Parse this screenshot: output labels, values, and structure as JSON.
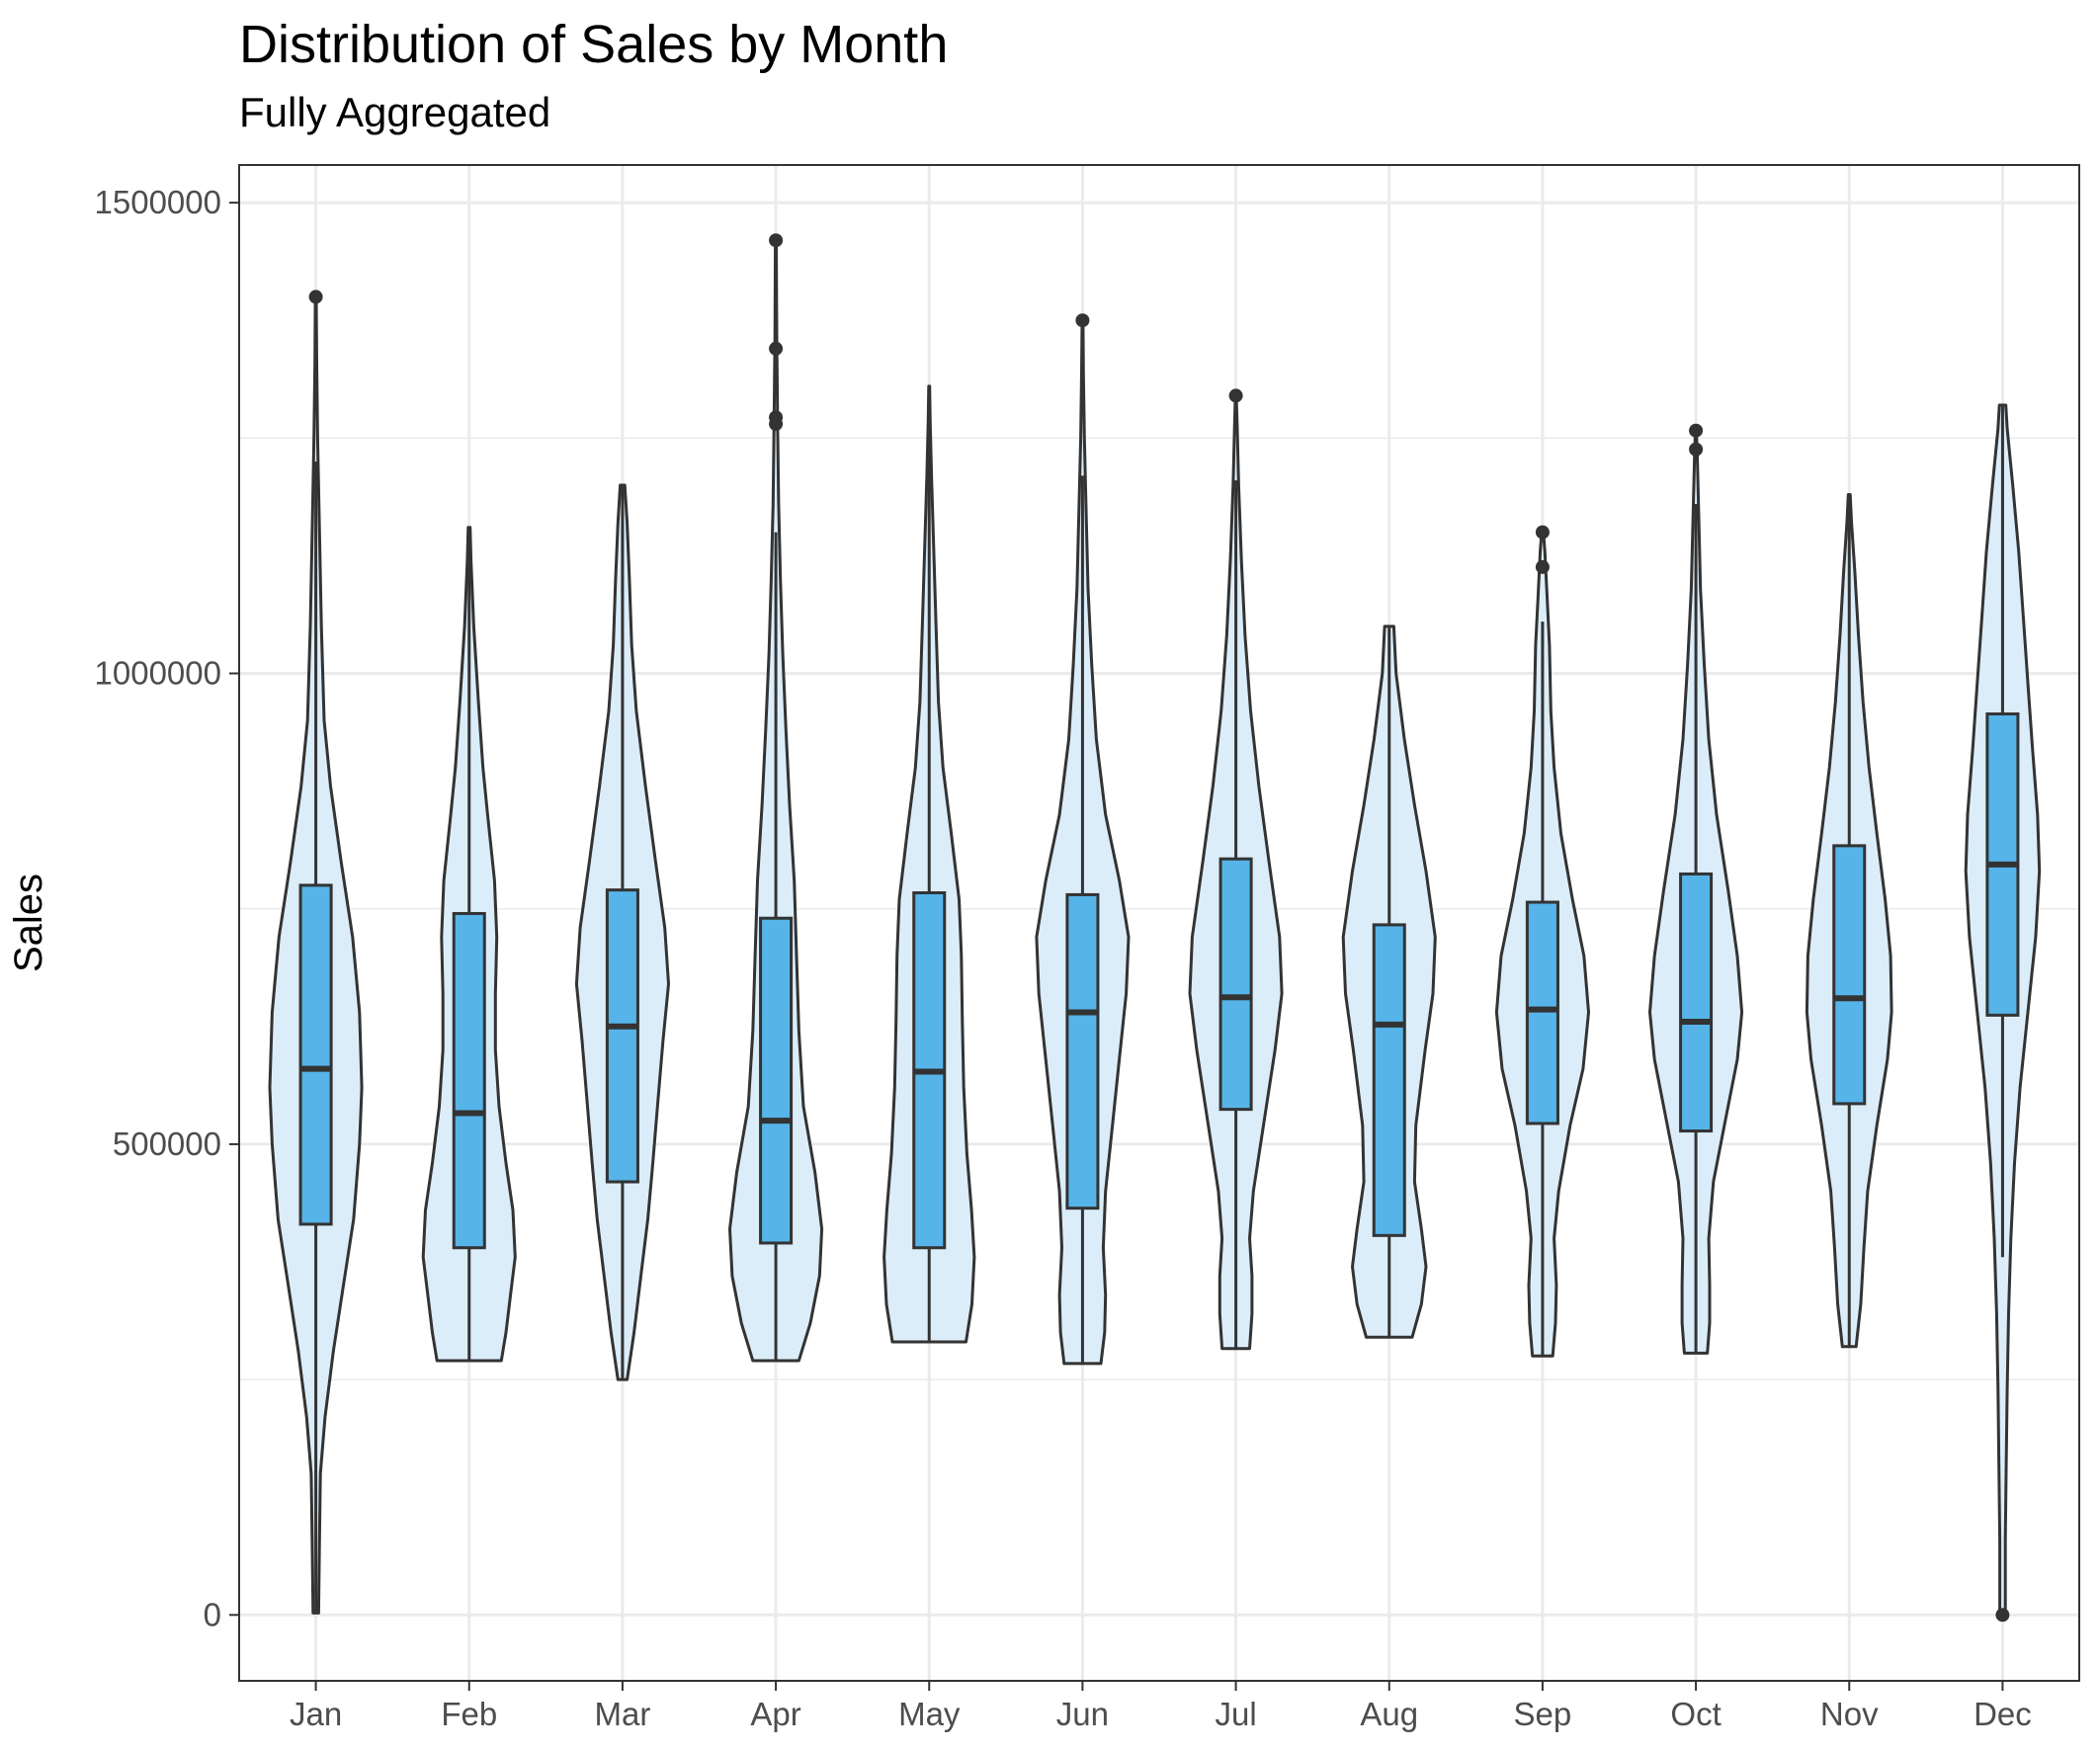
{
  "chart_data": {
    "type": "violin",
    "title": "Distribution of Sales by Month",
    "subtitle": "Fully Aggregated",
    "xlabel": "",
    "ylabel": "Sales",
    "ylim": [
      -70000,
      1540000
    ],
    "yticks": [
      0,
      500000,
      1000000,
      1500000
    ],
    "grid": true,
    "colors": {
      "violin_fill": "#dcedfa",
      "box_fill": "#56b4e9",
      "outline": "#333333",
      "grid": "#ebebeb",
      "panel_border": "#333333"
    },
    "categories": [
      "Jan",
      "Feb",
      "Mar",
      "Apr",
      "May",
      "Jun",
      "Jul",
      "Aug",
      "Sep",
      "Oct",
      "Nov",
      "Dec"
    ],
    "violins": [
      {
        "month": "Jan",
        "min": 2000,
        "max": 1400000,
        "width": [
          [
            2000,
            0.06
          ],
          [
            80000,
            0.08
          ],
          [
            150000,
            0.1
          ],
          [
            210000,
            0.2
          ],
          [
            280000,
            0.38
          ],
          [
            350000,
            0.6
          ],
          [
            420000,
            0.82
          ],
          [
            500000,
            0.95
          ],
          [
            560000,
            1.0
          ],
          [
            640000,
            0.95
          ],
          [
            720000,
            0.8
          ],
          [
            800000,
            0.55
          ],
          [
            880000,
            0.32
          ],
          [
            950000,
            0.18
          ],
          [
            1050000,
            0.12
          ],
          [
            1150000,
            0.08
          ],
          [
            1250000,
            0.04
          ],
          [
            1330000,
            0.02
          ],
          [
            1400000,
            0.01
          ]
        ],
        "q1": 415000,
        "median": 580000,
        "q3": 775000,
        "whisker_low": 2000,
        "whisker_high": 1225000,
        "outliers": [
          1400000
        ]
      },
      {
        "month": "Feb",
        "min": 270000,
        "max": 1155000,
        "width": [
          [
            270000,
            0.7
          ],
          [
            300000,
            0.8
          ],
          [
            340000,
            0.9
          ],
          [
            380000,
            1.0
          ],
          [
            430000,
            0.95
          ],
          [
            480000,
            0.8
          ],
          [
            540000,
            0.65
          ],
          [
            600000,
            0.57
          ],
          [
            660000,
            0.57
          ],
          [
            720000,
            0.6
          ],
          [
            780000,
            0.55
          ],
          [
            850000,
            0.4
          ],
          [
            900000,
            0.3
          ],
          [
            970000,
            0.2
          ],
          [
            1050000,
            0.1
          ],
          [
            1120000,
            0.04
          ],
          [
            1155000,
            0.02
          ]
        ],
        "q1": 390000,
        "median": 533000,
        "q3": 745000,
        "whisker_low": 270000,
        "whisker_high": 1155000,
        "outliers": []
      },
      {
        "month": "Mar",
        "min": 250000,
        "max": 1200000,
        "width": [
          [
            250000,
            0.1
          ],
          [
            300000,
            0.25
          ],
          [
            360000,
            0.4
          ],
          [
            420000,
            0.55
          ],
          [
            480000,
            0.66
          ],
          [
            540000,
            0.76
          ],
          [
            610000,
            0.88
          ],
          [
            670000,
            1.0
          ],
          [
            730000,
            0.92
          ],
          [
            800000,
            0.72
          ],
          [
            880000,
            0.5
          ],
          [
            960000,
            0.3
          ],
          [
            1030000,
            0.2
          ],
          [
            1100000,
            0.15
          ],
          [
            1160000,
            0.1
          ],
          [
            1200000,
            0.05
          ]
        ],
        "q1": 460000,
        "median": 625000,
        "q3": 770000,
        "whisker_low": 250000,
        "whisker_high": 1200000,
        "outliers": []
      },
      {
        "month": "Apr",
        "min": 270000,
        "max": 1460000,
        "width": [
          [
            270000,
            0.5
          ],
          [
            310000,
            0.75
          ],
          [
            360000,
            0.95
          ],
          [
            410000,
            1.0
          ],
          [
            470000,
            0.85
          ],
          [
            540000,
            0.6
          ],
          [
            620000,
            0.5
          ],
          [
            700000,
            0.45
          ],
          [
            780000,
            0.4
          ],
          [
            860000,
            0.3
          ],
          [
            940000,
            0.22
          ],
          [
            1020000,
            0.15
          ],
          [
            1100000,
            0.1
          ],
          [
            1180000,
            0.06
          ],
          [
            1260000,
            0.04
          ],
          [
            1360000,
            0.02
          ],
          [
            1460000,
            0.01
          ]
        ],
        "q1": 395000,
        "median": 525000,
        "q3": 740000,
        "whisker_low": 270000,
        "whisker_high": 1150000,
        "outliers": [
          1460000,
          1345000,
          1272000,
          1265000
        ]
      },
      {
        "month": "May",
        "min": 290000,
        "max": 1305000,
        "width": [
          [
            290000,
            0.8
          ],
          [
            330000,
            0.93
          ],
          [
            380000,
            0.98
          ],
          [
            430000,
            0.92
          ],
          [
            490000,
            0.82
          ],
          [
            560000,
            0.75
          ],
          [
            630000,
            0.72
          ],
          [
            700000,
            0.7
          ],
          [
            760000,
            0.65
          ],
          [
            830000,
            0.48
          ],
          [
            900000,
            0.3
          ],
          [
            970000,
            0.2
          ],
          [
            1050000,
            0.15
          ],
          [
            1130000,
            0.1
          ],
          [
            1210000,
            0.05
          ],
          [
            1270000,
            0.02
          ],
          [
            1305000,
            0.01
          ]
        ],
        "q1": 390000,
        "median": 577000,
        "q3": 767000,
        "whisker_low": 290000,
        "whisker_high": 1305000,
        "outliers": []
      },
      {
        "month": "Jun",
        "min": 267000,
        "max": 1375000,
        "width": [
          [
            267000,
            0.4
          ],
          [
            300000,
            0.48
          ],
          [
            340000,
            0.5
          ],
          [
            390000,
            0.45
          ],
          [
            450000,
            0.5
          ],
          [
            520000,
            0.65
          ],
          [
            600000,
            0.82
          ],
          [
            660000,
            0.95
          ],
          [
            720000,
            1.0
          ],
          [
            780000,
            0.8
          ],
          [
            850000,
            0.5
          ],
          [
            930000,
            0.3
          ],
          [
            1010000,
            0.2
          ],
          [
            1090000,
            0.12
          ],
          [
            1170000,
            0.08
          ],
          [
            1250000,
            0.04
          ],
          [
            1320000,
            0.02
          ],
          [
            1375000,
            0.01
          ]
        ],
        "q1": 432000,
        "median": 640000,
        "q3": 765000,
        "whisker_low": 267000,
        "whisker_high": 1210000,
        "outliers": [
          1375000
        ]
      },
      {
        "month": "Jul",
        "min": 283000,
        "max": 1295000,
        "width": [
          [
            283000,
            0.3
          ],
          [
            320000,
            0.35
          ],
          [
            360000,
            0.35
          ],
          [
            400000,
            0.3
          ],
          [
            450000,
            0.38
          ],
          [
            520000,
            0.6
          ],
          [
            600000,
            0.85
          ],
          [
            660000,
            1.0
          ],
          [
            720000,
            0.95
          ],
          [
            800000,
            0.72
          ],
          [
            880000,
            0.5
          ],
          [
            960000,
            0.32
          ],
          [
            1040000,
            0.2
          ],
          [
            1120000,
            0.12
          ],
          [
            1200000,
            0.06
          ],
          [
            1260000,
            0.03
          ],
          [
            1295000,
            0.01
          ]
        ],
        "q1": 537000,
        "median": 656000,
        "q3": 803000,
        "whisker_low": 283000,
        "whisker_high": 1205000,
        "outliers": [
          1295000
        ]
      },
      {
        "month": "Aug",
        "min": 295000,
        "max": 1050000,
        "width": [
          [
            295000,
            0.5
          ],
          [
            330000,
            0.7
          ],
          [
            370000,
            0.8
          ],
          [
            410000,
            0.7
          ],
          [
            460000,
            0.55
          ],
          [
            520000,
            0.58
          ],
          [
            600000,
            0.78
          ],
          [
            660000,
            0.95
          ],
          [
            720000,
            1.0
          ],
          [
            790000,
            0.8
          ],
          [
            860000,
            0.55
          ],
          [
            930000,
            0.33
          ],
          [
            1000000,
            0.15
          ],
          [
            1050000,
            0.1
          ]
        ],
        "q1": 403000,
        "median": 627000,
        "q3": 733000,
        "whisker_low": 295000,
        "whisker_high": 1050000,
        "outliers": []
      },
      {
        "month": "Sep",
        "min": 275000,
        "max": 1150000,
        "width": [
          [
            275000,
            0.22
          ],
          [
            310000,
            0.28
          ],
          [
            350000,
            0.3
          ],
          [
            400000,
            0.25
          ],
          [
            450000,
            0.35
          ],
          [
            520000,
            0.6
          ],
          [
            580000,
            0.88
          ],
          [
            640000,
            1.0
          ],
          [
            700000,
            0.9
          ],
          [
            760000,
            0.65
          ],
          [
            830000,
            0.4
          ],
          [
            900000,
            0.25
          ],
          [
            960000,
            0.18
          ],
          [
            1030000,
            0.15
          ],
          [
            1080000,
            0.1
          ],
          [
            1130000,
            0.05
          ],
          [
            1150000,
            0.02
          ]
        ],
        "q1": 522000,
        "median": 643000,
        "q3": 757000,
        "whisker_low": 275000,
        "whisker_high": 1055000,
        "outliers": [
          1150000,
          1113000
        ]
      },
      {
        "month": "Oct",
        "min": 278000,
        "max": 1260000,
        "width": [
          [
            278000,
            0.25
          ],
          [
            310000,
            0.3
          ],
          [
            350000,
            0.3
          ],
          [
            400000,
            0.28
          ],
          [
            460000,
            0.38
          ],
          [
            520000,
            0.62
          ],
          [
            590000,
            0.9
          ],
          [
            640000,
            1.0
          ],
          [
            700000,
            0.9
          ],
          [
            770000,
            0.7
          ],
          [
            850000,
            0.45
          ],
          [
            930000,
            0.28
          ],
          [
            1010000,
            0.18
          ],
          [
            1090000,
            0.1
          ],
          [
            1170000,
            0.06
          ],
          [
            1230000,
            0.03
          ],
          [
            1260000,
            0.01
          ]
        ],
        "q1": 514000,
        "median": 630000,
        "q3": 787000,
        "whisker_low": 278000,
        "whisker_high": 1180000,
        "outliers": [
          1258000,
          1238000
        ]
      },
      {
        "month": "Nov",
        "min": 285000,
        "max": 1190000,
        "width": [
          [
            285000,
            0.15
          ],
          [
            330000,
            0.25
          ],
          [
            390000,
            0.32
          ],
          [
            450000,
            0.4
          ],
          [
            520000,
            0.6
          ],
          [
            590000,
            0.83
          ],
          [
            640000,
            0.92
          ],
          [
            700000,
            0.9
          ],
          [
            760000,
            0.78
          ],
          [
            830000,
            0.6
          ],
          [
            900000,
            0.43
          ],
          [
            970000,
            0.3
          ],
          [
            1040000,
            0.2
          ],
          [
            1110000,
            0.12
          ],
          [
            1160000,
            0.05
          ],
          [
            1190000,
            0.02
          ]
        ],
        "q1": 543000,
        "median": 655000,
        "q3": 817000,
        "whisker_low": 285000,
        "whisker_high": 1190000,
        "outliers": []
      },
      {
        "month": "Dec",
        "min": 0,
        "max": 1285000,
        "width": [
          [
            0,
            0.06
          ],
          [
            80000,
            0.06
          ],
          [
            160000,
            0.08
          ],
          [
            240000,
            0.1
          ],
          [
            320000,
            0.13
          ],
          [
            400000,
            0.18
          ],
          [
            480000,
            0.26
          ],
          [
            560000,
            0.38
          ],
          [
            640000,
            0.55
          ],
          [
            720000,
            0.72
          ],
          [
            790000,
            0.8
          ],
          [
            850000,
            0.76
          ],
          [
            920000,
            0.65
          ],
          [
            990000,
            0.55
          ],
          [
            1060000,
            0.45
          ],
          [
            1130000,
            0.35
          ],
          [
            1200000,
            0.22
          ],
          [
            1260000,
            0.1
          ],
          [
            1285000,
            0.07
          ]
        ],
        "q1": 637000,
        "median": 797000,
        "q3": 957000,
        "whisker_low": 380000,
        "whisker_high": 1285000,
        "outliers": [
          0
        ]
      }
    ]
  }
}
